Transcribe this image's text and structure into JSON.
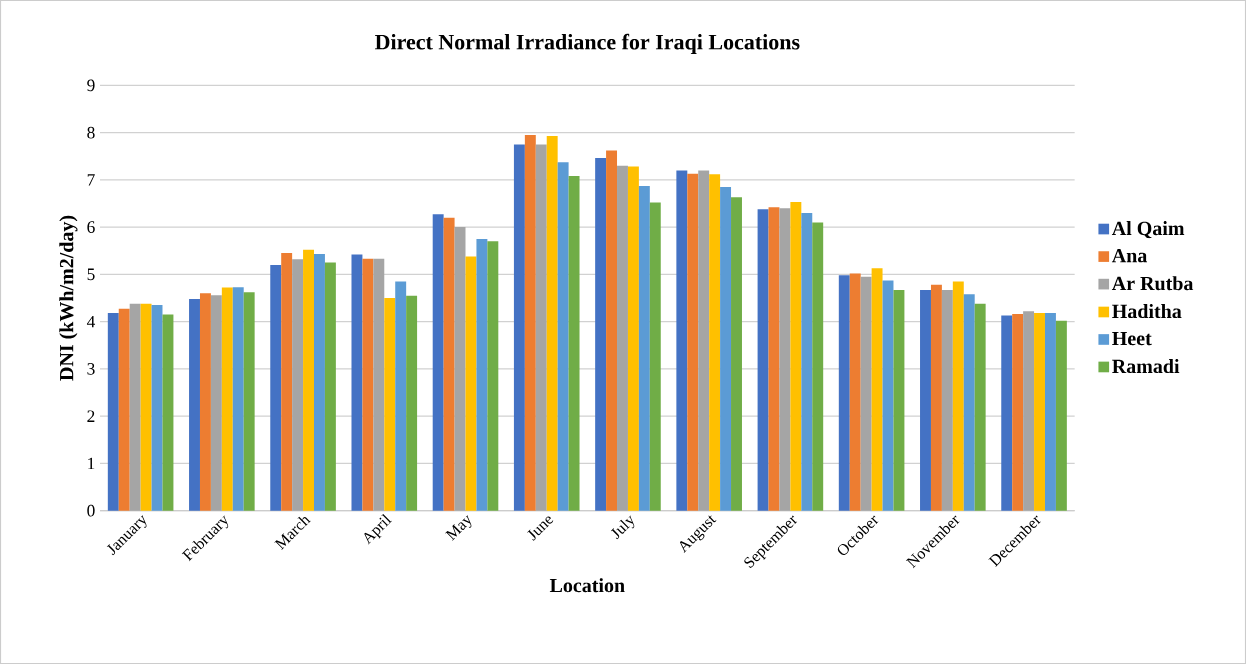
{
  "chart_data": {
    "type": "bar",
    "title": "Direct Normal Irradiance  for Iraqi Locations",
    "xlabel": "Location",
    "ylabel": "DNI (kWh/m2/day)",
    "categories": [
      "January",
      "February",
      "March",
      "April",
      "May",
      "June",
      "July",
      "August",
      "September",
      "October",
      "November",
      "December"
    ],
    "series": [
      {
        "name": "Al Qaim",
        "color": "#4472c4",
        "values": [
          4.18,
          4.48,
          5.2,
          5.42,
          6.27,
          7.75,
          7.46,
          7.2,
          6.38,
          4.98,
          4.67,
          4.13
        ]
      },
      {
        "name": "Ana",
        "color": "#ed7d31",
        "values": [
          4.27,
          4.6,
          5.45,
          5.33,
          6.2,
          7.95,
          7.62,
          7.13,
          6.42,
          5.02,
          4.78,
          4.16
        ]
      },
      {
        "name": "Ar Rutba",
        "color": "#a5a5a5",
        "values": [
          4.38,
          4.56,
          5.32,
          5.33,
          6.0,
          7.75,
          7.3,
          7.2,
          6.4,
          4.95,
          4.67,
          4.22
        ]
      },
      {
        "name": "Haditha",
        "color": "#ffc000",
        "values": [
          4.38,
          4.72,
          5.52,
          4.5,
          5.38,
          7.93,
          7.28,
          7.12,
          6.53,
          5.13,
          4.85,
          4.18
        ]
      },
      {
        "name": "Heet",
        "color": "#5b9bd5",
        "values": [
          4.35,
          4.73,
          5.43,
          4.85,
          5.75,
          7.37,
          6.87,
          6.85,
          6.3,
          4.87,
          4.58,
          4.18
        ]
      },
      {
        "name": "Ramadi",
        "color": "#70ad47",
        "values": [
          4.15,
          4.62,
          5.25,
          4.55,
          5.7,
          7.08,
          6.52,
          6.63,
          6.1,
          4.67,
          4.38,
          4.02
        ]
      }
    ],
    "ylim": [
      0,
      9
    ],
    "yticks": [
      0,
      1,
      2,
      3,
      4,
      5,
      6,
      7,
      8,
      9
    ],
    "grid": "y",
    "legend": "right"
  }
}
